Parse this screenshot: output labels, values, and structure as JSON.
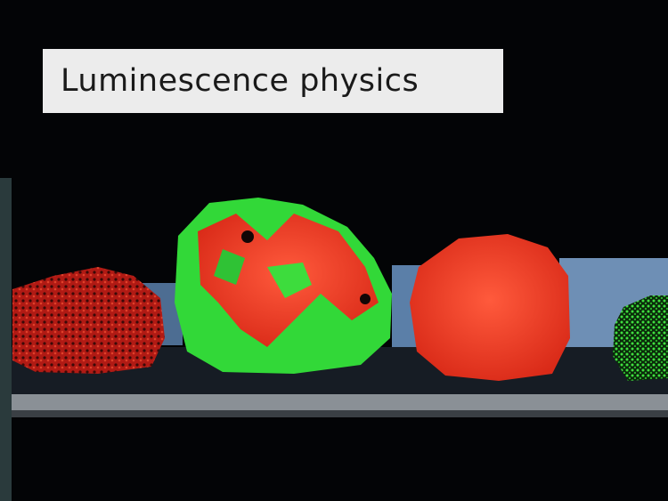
{
  "title": "Luminescence physics"
}
